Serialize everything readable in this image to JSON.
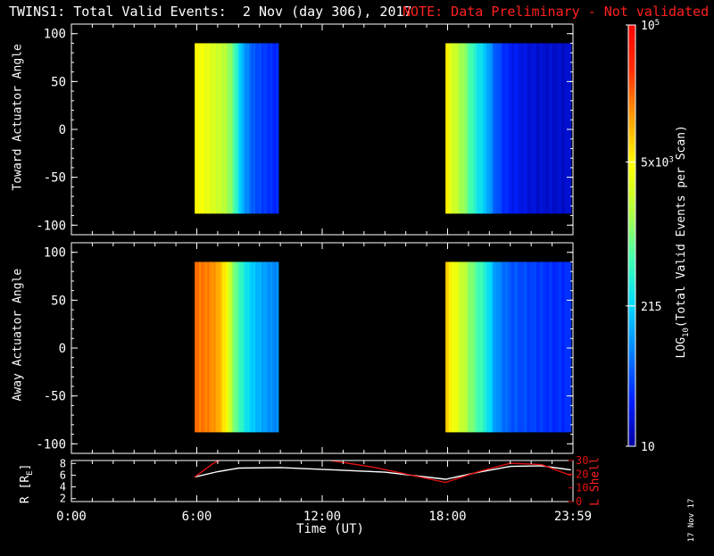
{
  "title": "TWINS1: Total Valid Events:  2 Nov (day 306), 2017",
  "note": "NOTE: Data Preliminary - Not validated",
  "colors": {
    "background": "#000000",
    "axis": "#ffffff",
    "note": "#ff2020",
    "lshell": "#e01010",
    "radius": "#ffffff"
  },
  "xaxis": {
    "label": "Time (UT)",
    "ticks": [
      "0:00",
      "6:00",
      "12:00",
      "18:00",
      "23:59"
    ],
    "tick_hours": [
      0,
      6,
      12,
      18,
      24
    ],
    "range_hours": [
      0,
      24
    ]
  },
  "colorbar": {
    "label": "LOG10(Total Valid Events per Scan)",
    "label_prefix": "LOG",
    "label_sub": "10",
    "label_suffix": "(Total Valid Events per Scan)",
    "scale": "log",
    "range": [
      10,
      100000
    ],
    "ticks": [
      {
        "value": 100000,
        "base": "10",
        "exp": "5"
      },
      {
        "value": 5000,
        "base": "5x10",
        "exp": "3"
      },
      {
        "value": 215,
        "base": "215",
        "exp": ""
      },
      {
        "value": 10,
        "base": "10",
        "exp": ""
      }
    ],
    "palette": [
      "#0000a0",
      "#0020ff",
      "#0080ff",
      "#00d8ff",
      "#40ffb0",
      "#b0ff40",
      "#ffff00",
      "#ffa000",
      "#ff3000",
      "#ff0000"
    ]
  },
  "chart_data": [
    {
      "type": "heatmap",
      "title": "",
      "xlabel": "Time (UT)",
      "ylabel": "Toward Actuator Angle",
      "xlim": [
        0,
        24
      ],
      "ylim": [
        -110,
        110
      ],
      "yticks": [
        100,
        50,
        0,
        -50,
        -100
      ],
      "blocks": [
        {
          "t_start": 5.9,
          "t_end": 9.9,
          "angle_min": -88,
          "angle_max": 90,
          "time_profile_log10": [
            [
              5.9,
              3.7
            ],
            [
              6.3,
              3.6
            ],
            [
              6.8,
              3.45
            ],
            [
              7.3,
              3.3
            ],
            [
              7.7,
              3.0
            ],
            [
              8.2,
              2.1
            ],
            [
              8.7,
              1.7
            ],
            [
              9.3,
              1.55
            ],
            [
              9.9,
              1.45
            ]
          ]
        },
        {
          "t_start": 17.9,
          "t_end": 23.9,
          "angle_min": -88,
          "angle_max": 90,
          "time_profile_log10": [
            [
              17.9,
              3.75
            ],
            [
              18.3,
              3.4
            ],
            [
              18.8,
              3.1
            ],
            [
              19.3,
              2.6
            ],
            [
              19.8,
              2.25
            ],
            [
              20.3,
              1.7
            ],
            [
              21.0,
              1.4
            ],
            [
              22.0,
              1.25
            ],
            [
              23.0,
              1.2
            ],
            [
              23.9,
              1.2
            ]
          ]
        }
      ]
    },
    {
      "type": "heatmap",
      "title": "",
      "xlabel": "Time (UT)",
      "ylabel": "Away Actuator Angle",
      "xlim": [
        0,
        24
      ],
      "ylim": [
        -110,
        110
      ],
      "yticks": [
        100,
        50,
        0,
        -50,
        -100
      ],
      "blocks": [
        {
          "t_start": 5.9,
          "t_end": 9.9,
          "angle_min": -88,
          "angle_max": 90,
          "time_profile_log10": [
            [
              5.9,
              4.3
            ],
            [
              6.5,
              4.25
            ],
            [
              7.0,
              4.1
            ],
            [
              7.4,
              3.7
            ],
            [
              7.8,
              3.0
            ],
            [
              8.3,
              2.5
            ],
            [
              8.8,
              2.2
            ],
            [
              9.4,
              2.0
            ],
            [
              9.9,
              1.9
            ]
          ]
        },
        {
          "t_start": 17.9,
          "t_end": 23.9,
          "angle_min": -88,
          "angle_max": 90,
          "time_profile_log10": [
            [
              17.9,
              3.9
            ],
            [
              18.3,
              3.6
            ],
            [
              18.8,
              3.3
            ],
            [
              19.3,
              2.9
            ],
            [
              19.8,
              2.6
            ],
            [
              20.3,
              2.0
            ],
            [
              21.0,
              1.7
            ],
            [
              22.0,
              1.6
            ],
            [
              23.0,
              1.5
            ],
            [
              23.9,
              1.5
            ]
          ]
        }
      ]
    },
    {
      "type": "line",
      "title": "",
      "xlabel": "Time (UT)",
      "ylabel": "R [RE]",
      "ylabel_prefix": "R [R",
      "ylabel_sub": "E",
      "ylabel_suffix": "]",
      "ylabel_right": "L Shell",
      "ylim": [
        1.5,
        8.5
      ],
      "yticks": [
        8,
        6,
        4,
        2
      ],
      "ylim_right": [
        0,
        30
      ],
      "yticks_right": [
        30,
        20,
        10,
        0
      ],
      "series": [
        {
          "name": "R [RE]",
          "axis": "left",
          "x": [
            5.9,
            7.0,
            8.0,
            10.0,
            12.0,
            15.0,
            17.9,
            19.5,
            21.0,
            22.5,
            23.9
          ],
          "y": [
            5.7,
            6.6,
            7.2,
            7.3,
            7.0,
            6.5,
            5.3,
            6.5,
            7.5,
            7.6,
            6.9
          ]
        },
        {
          "name": "L Shell",
          "axis": "right",
          "x": [
            5.9,
            6.8,
            7.2
          ],
          "y": [
            18,
            28,
            31
          ]
        },
        {
          "name": "L Shell",
          "axis": "right",
          "x": [
            12.0,
            14.5,
            17.9,
            19.5,
            21.0,
            22.5,
            23.9
          ],
          "y": [
            31,
            25,
            14,
            22,
            28,
            27,
            19
          ]
        }
      ]
    }
  ],
  "stamp": "17 Nov 17"
}
